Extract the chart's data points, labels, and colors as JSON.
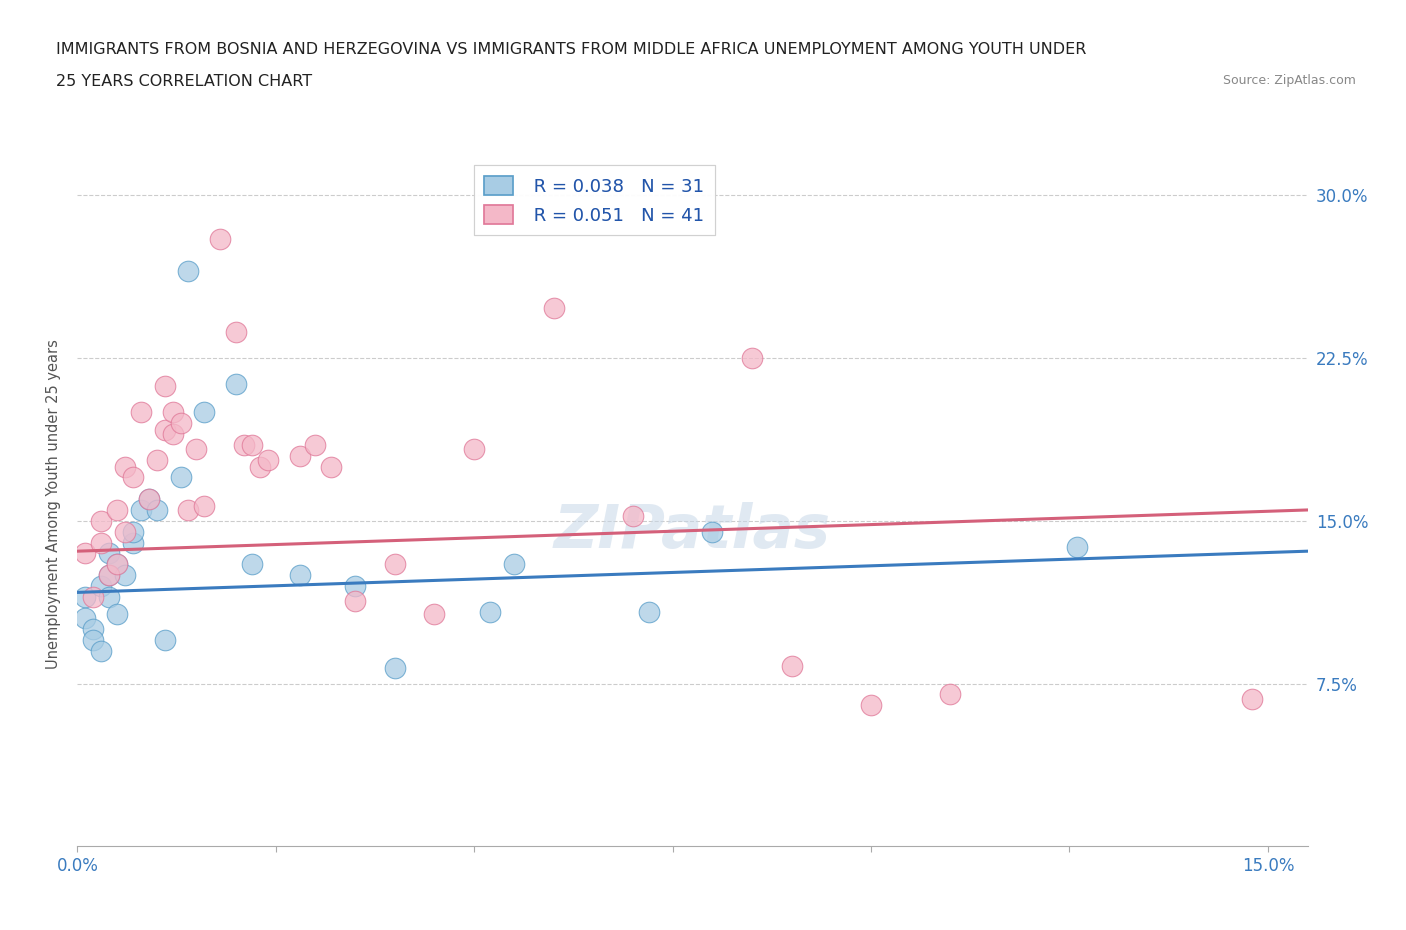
{
  "title_line1": "IMMIGRANTS FROM BOSNIA AND HERZEGOVINA VS IMMIGRANTS FROM MIDDLE AFRICA UNEMPLOYMENT AMONG YOUTH UNDER",
  "title_line2": "25 YEARS CORRELATION CHART",
  "source": "Source: ZipAtlas.com",
  "ylabel": "Unemployment Among Youth under 25 years",
  "yticks": [
    0.075,
    0.15,
    0.225,
    0.3
  ],
  "ytick_labels": [
    "7.5%",
    "15.0%",
    "22.5%",
    "30.0%"
  ],
  "xmin": 0.0,
  "xmax": 0.155,
  "ymin": 0.0,
  "ymax": 0.315,
  "blue_R": 0.038,
  "blue_N": 31,
  "pink_R": 0.051,
  "pink_N": 41,
  "blue_label": "Immigrants from Bosnia and Herzegovina",
  "pink_label": "Immigrants from Middle Africa",
  "blue_color": "#a8cce4",
  "pink_color": "#f4b8c8",
  "blue_edge_color": "#5a9ec9",
  "pink_edge_color": "#e07898",
  "blue_line_color": "#3a7bbf",
  "pink_line_color": "#d4607a",
  "legend_R_color": "#2255aa",
  "blue_scatter_x": [
    0.001,
    0.001,
    0.002,
    0.002,
    0.003,
    0.003,
    0.004,
    0.004,
    0.004,
    0.005,
    0.005,
    0.006,
    0.007,
    0.007,
    0.008,
    0.009,
    0.01,
    0.011,
    0.013,
    0.014,
    0.016,
    0.02,
    0.022,
    0.028,
    0.035,
    0.04,
    0.052,
    0.055,
    0.072,
    0.08,
    0.126
  ],
  "blue_scatter_y": [
    0.115,
    0.105,
    0.1,
    0.095,
    0.12,
    0.09,
    0.115,
    0.125,
    0.135,
    0.107,
    0.13,
    0.125,
    0.14,
    0.145,
    0.155,
    0.16,
    0.155,
    0.095,
    0.17,
    0.265,
    0.2,
    0.213,
    0.13,
    0.125,
    0.12,
    0.082,
    0.108,
    0.13,
    0.108,
    0.145,
    0.138
  ],
  "pink_scatter_x": [
    0.001,
    0.002,
    0.003,
    0.003,
    0.004,
    0.005,
    0.005,
    0.006,
    0.006,
    0.007,
    0.008,
    0.009,
    0.01,
    0.011,
    0.011,
    0.012,
    0.012,
    0.013,
    0.014,
    0.015,
    0.016,
    0.018,
    0.02,
    0.021,
    0.022,
    0.023,
    0.024,
    0.028,
    0.03,
    0.032,
    0.035,
    0.04,
    0.045,
    0.05,
    0.06,
    0.07,
    0.085,
    0.09,
    0.1,
    0.11,
    0.148
  ],
  "pink_scatter_y": [
    0.135,
    0.115,
    0.14,
    0.15,
    0.125,
    0.13,
    0.155,
    0.145,
    0.175,
    0.17,
    0.2,
    0.16,
    0.178,
    0.212,
    0.192,
    0.19,
    0.2,
    0.195,
    0.155,
    0.183,
    0.157,
    0.28,
    0.237,
    0.185,
    0.185,
    0.175,
    0.178,
    0.18,
    0.185,
    0.175,
    0.113,
    0.13,
    0.107,
    0.183,
    0.248,
    0.152,
    0.225,
    0.083,
    0.065,
    0.07,
    0.068
  ],
  "blue_trend_x0": 0.0,
  "blue_trend_x1": 0.155,
  "blue_trend_y0": 0.117,
  "blue_trend_y1": 0.136,
  "pink_trend_x0": 0.0,
  "pink_trend_x1": 0.155,
  "pink_trend_y0": 0.136,
  "pink_trend_y1": 0.155,
  "watermark": "ZIPatlas",
  "background_color": "#ffffff",
  "grid_color": "#cccccc",
  "title_fontsize": 11.5,
  "axis_label_color": "#3a7bbf"
}
